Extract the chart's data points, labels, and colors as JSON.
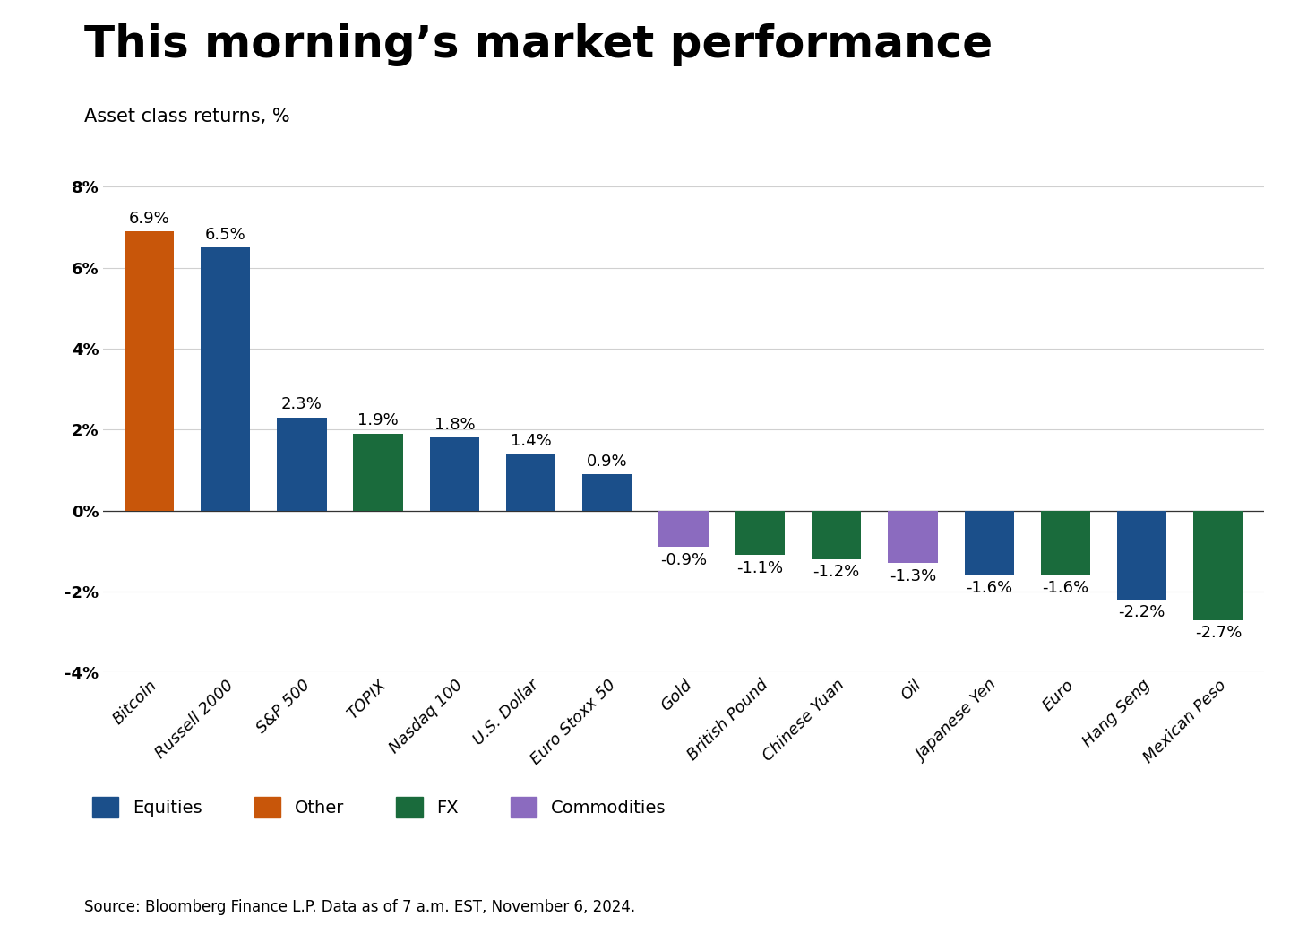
{
  "title": "This morning’s market performance",
  "subtitle": "Asset class returns, %",
  "source": "Source: Bloomberg Finance L.P. Data as of 7 a.m. EST, November 6, 2024.",
  "categories": [
    "Bitcoin",
    "Russell 2000",
    "S&P 500",
    "TOPIX",
    "Nasdaq 100",
    "U.S. Dollar",
    "Euro Stoxx 50",
    "Gold",
    "British Pound",
    "Chinese Yuan",
    "Oil",
    "Japanese Yen",
    "Euro",
    "Hang Seng",
    "Mexican Peso"
  ],
  "values": [
    6.9,
    6.5,
    2.3,
    1.9,
    1.8,
    1.4,
    0.9,
    -0.9,
    -1.1,
    -1.2,
    -1.3,
    -1.6,
    -1.6,
    -2.2,
    -2.7
  ],
  "colors": [
    "#c8560a",
    "#1b4f8a",
    "#1b4f8a",
    "#1a6b3c",
    "#1b4f8a",
    "#1b4f8a",
    "#1b4f8a",
    "#8b6bbf",
    "#1a6b3c",
    "#1a6b3c",
    "#8b6bbf",
    "#1b4f8a",
    "#1a6b3c",
    "#1b4f8a",
    "#1a6b3c"
  ],
  "legend": [
    {
      "label": "Equities",
      "color": "#1b4f8a"
    },
    {
      "label": "Other",
      "color": "#c8560a"
    },
    {
      "label": "FX",
      "color": "#1a6b3c"
    },
    {
      "label": "Commodities",
      "color": "#8b6bbf"
    }
  ],
  "ylim": [
    -4,
    8
  ],
  "yticks": [
    -4,
    -2,
    0,
    2,
    4,
    6,
    8
  ],
  "background_color": "#ffffff",
  "title_fontsize": 36,
  "subtitle_fontsize": 15,
  "bar_label_fontsize": 13,
  "axis_label_fontsize": 13,
  "legend_fontsize": 14,
  "source_fontsize": 12
}
